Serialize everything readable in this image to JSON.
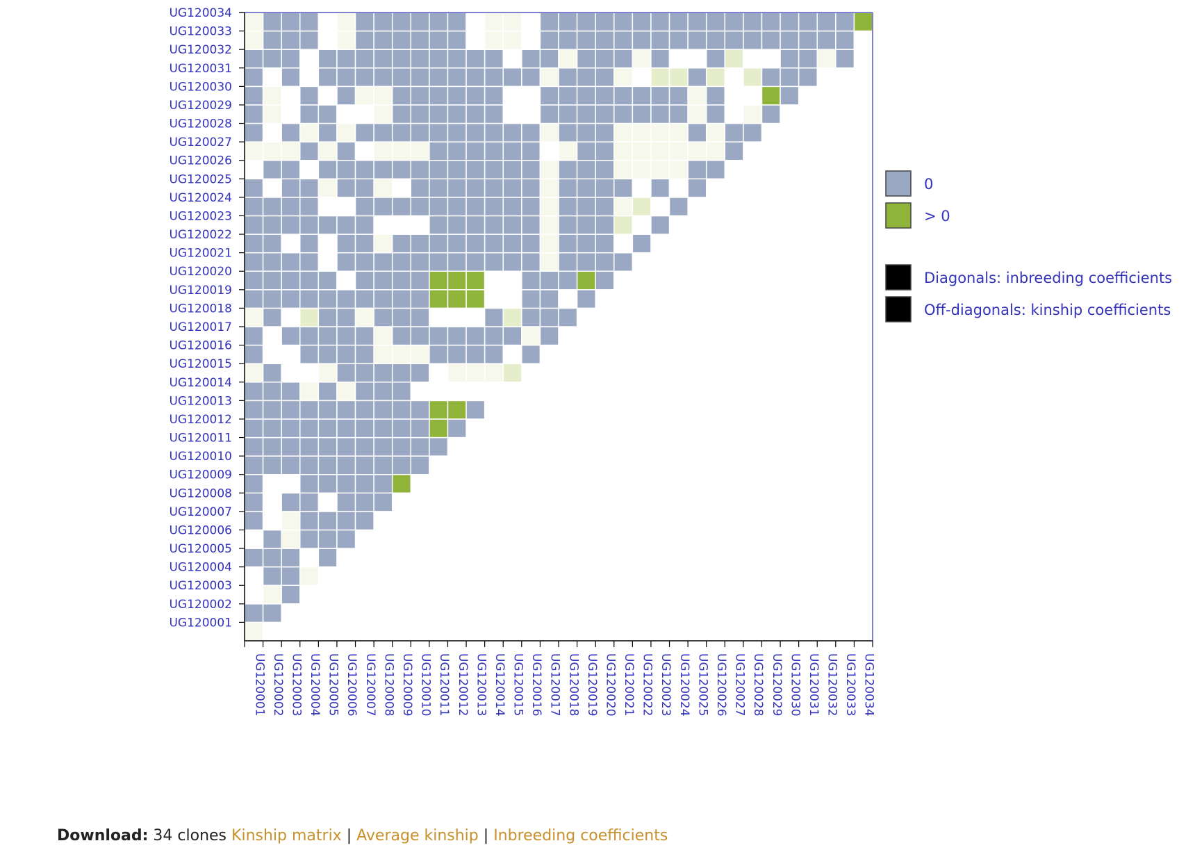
{
  "chart_data": {
    "type": "heatmap",
    "title": "",
    "xlabel": "",
    "ylabel": "",
    "labels": [
      "UG120001",
      "UG120002",
      "UG120003",
      "UG120004",
      "UG120005",
      "UG120006",
      "UG120007",
      "UG120008",
      "UG120009",
      "UG120010",
      "UG120011",
      "UG120012",
      "UG120013",
      "UG120014",
      "UG120015",
      "UG120016",
      "UG120017",
      "UG120018",
      "UG120019",
      "UG120020",
      "UG120021",
      "UG120022",
      "UG120023",
      "UG120024",
      "UG120025",
      "UG120026",
      "UG120027",
      "UG120028",
      "UG120029",
      "UG120030",
      "UG120031",
      "UG120032",
      "UG120033",
      "UG120034"
    ],
    "value_map": {
      "z": "0",
      "w": "approximately 0",
      "p": "slightly below 0",
      "l": "below 0",
      "g": "> 0"
    },
    "cells_lower_triangle": [
      "p",
      "z z",
      "w p z",
      "w z z p",
      "z z z w z",
      "w z p z z z",
      "z w p z z z z",
      "z w z z w z z z",
      "z w w z z z z z g",
      "z z z z z z z z z z",
      "z z z z z z z z z z z",
      "z z z z z z z z z z g z",
      "z z z z z z z z z z g g z",
      "z z z p z p z z z w w w w w",
      "p z w w p z z z z z w p p p l",
      "z w w z z z z p p p z z z z w z",
      "z w z z z z z p z z z z z z z p z",
      "p z w l z z p z z z w w w z l z z z",
      "z z z z z z z z z z g g g w w z z w z",
      "z z z z z w z z z z g g g w w z z z g z",
      "z z z z w z z z z z z z z z z z p z z z z",
      "z z w z w z z p z z z z z z z z p z z z w z",
      "z z z z z z z w w w z z z z z z p z z z l w z",
      "z z z z w w z z z z z z z z z z p z z z p l w z",
      "z w z z p z z p w z z z z z z z p z z z z w z w z",
      "w z z w z z z z z z z z z z z z p z z z p p p p z z",
      "p p p z p z w p p p z z z z z z w p z z p p p p p p z",
      "z w z p z p z z z z z z z z z z p z z z p p p p z p z z",
      "z p w z z w w p z z z z z z w w z z z z z z z z p z w p z",
      "z p w z w z p p z z z z z z w w z z z z z z z z p z w w g z",
      "z w z w z z z z z z z z z z z z p z z z p w l l z l w l z z z",
      "z z z w z z z z z z z z z z w z z p z z z p z w w z l w w z z p z",
      "p z z z w p z z z z z z w p p w z z z z z z z z z z z z z z z z z w",
      "p z z z w p z z z z z z w p p w z z z z z z z z z z z z z z z z z g w"
    ]
  },
  "legend": {
    "items": [
      {
        "label": "0",
        "color": "#9aa8c4"
      },
      {
        "label": "> 0",
        "color": "#90b33a"
      }
    ],
    "notes": [
      {
        "label": "Diagonals: inbreeding coefficients",
        "color": "#000000"
      },
      {
        "label": "Off-diagonals: kinship coefficients",
        "color": "#000000"
      }
    ]
  },
  "download": {
    "label": "Download:",
    "count_text": "34 clones",
    "links": [
      "Kinship matrix",
      "Average kinship",
      "Inbreeding coefficients"
    ]
  },
  "colors": {
    "z": "#9aa8c4",
    "w": "#ffffff",
    "p": "#f6f8ec",
    "l": "#e6edca",
    "g": "#90b33a",
    "frame": "#8080d0",
    "text": "#3333bb",
    "link": "#c8902a"
  }
}
